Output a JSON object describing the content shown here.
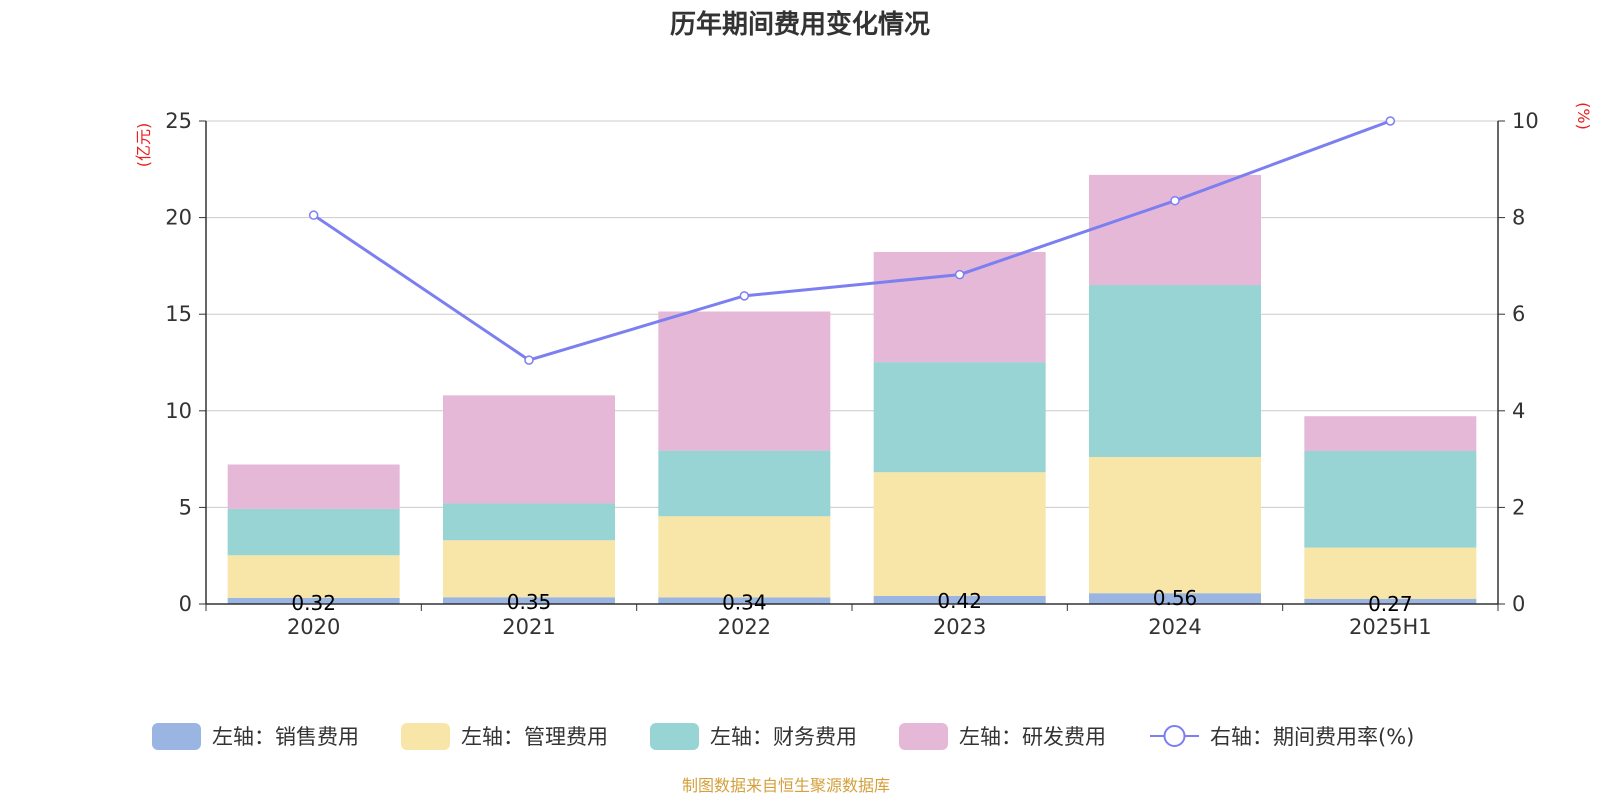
{
  "chart_data": {
    "type": "bar",
    "title": "历年期间费用变化情况",
    "y_left_unit": "(亿元)",
    "y_right_unit": "(%)",
    "categories": [
      "2020",
      "2021",
      "2022",
      "2023",
      "2024",
      "2025H1"
    ],
    "y_left": {
      "lim": [
        0,
        25
      ],
      "ticks": [
        "0",
        "5",
        "10",
        "15",
        "20",
        "25"
      ]
    },
    "y_right": {
      "lim": [
        0,
        10
      ],
      "ticks": [
        "0",
        "2",
        "4",
        "6",
        "8",
        "10"
      ]
    },
    "grid": true,
    "series": [
      {
        "name": "左轴：销售费用",
        "axis": "left",
        "kind": "bar",
        "color": "#9bb5e3",
        "values": [
          0.32,
          0.35,
          0.34,
          0.42,
          0.56,
          0.27
        ],
        "labels": [
          "0.32",
          "0.35",
          "0.34",
          "0.42",
          "0.56",
          "0.27"
        ]
      },
      {
        "name": "左轴：管理费用",
        "axis": "left",
        "kind": "bar",
        "color": "#f7e6a7",
        "values": [
          2.2,
          2.95,
          4.2,
          6.4,
          7.05,
          2.65
        ]
      },
      {
        "name": "左轴：财务费用",
        "axis": "left",
        "kind": "bar",
        "color": "#98d4d4",
        "values": [
          2.4,
          1.9,
          3.4,
          5.7,
          8.9,
          5.0
        ]
      },
      {
        "name": "左轴：研发费用",
        "axis": "left",
        "kind": "bar",
        "color": "#e6b8d8",
        "values": [
          2.3,
          5.6,
          7.2,
          5.7,
          5.7,
          1.8
        ]
      },
      {
        "name": "右轴：期间费用率(%)",
        "axis": "right",
        "kind": "line",
        "color": "#7b7ff0",
        "values": [
          8.05,
          5.05,
          6.38,
          6.82,
          8.35,
          10.0
        ]
      }
    ],
    "legend_position": "bottom"
  },
  "source": "制图数据来自恒生聚源数据库",
  "colors": {
    "unit": "#e8201e",
    "source": "#d4a03c",
    "grid": "#cccccc",
    "axis": "#333333"
  }
}
